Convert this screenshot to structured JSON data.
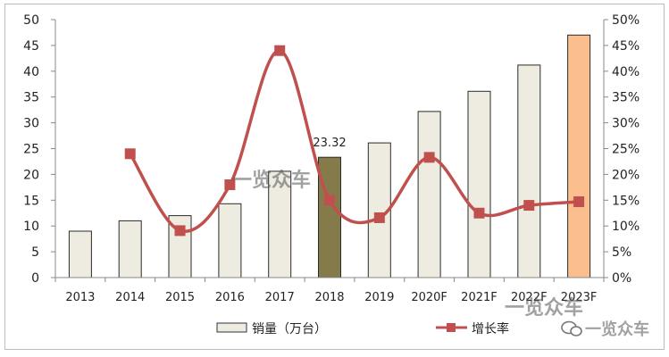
{
  "chart_data": {
    "type": "bar",
    "categories": [
      "2013",
      "2014",
      "2015",
      "2016",
      "2017",
      "2018",
      "2019",
      "2020F",
      "2021F",
      "2022F",
      "2023F"
    ],
    "series": [
      {
        "name": "销量（万台）",
        "type": "bar",
        "axis": "left",
        "values": [
          9,
          11,
          12,
          14.3,
          20.6,
          23.32,
          26.1,
          32.2,
          36.1,
          41.2,
          47
        ],
        "colors": [
          "#eeece1",
          "#eeece1",
          "#eeece1",
          "#eeece1",
          "#eeece1",
          "#857a4a",
          "#eeece1",
          "#eeece1",
          "#eeece1",
          "#eeece1",
          "#fbbf8f"
        ]
      },
      {
        "name": "增长率",
        "type": "line",
        "axis": "right",
        "values": [
          null,
          24,
          9.1,
          18,
          44,
          15,
          11.6,
          23.3,
          12.5,
          14,
          14.7
        ],
        "color": "#c0504d"
      }
    ],
    "ylim_left": [
      0,
      50
    ],
    "yticks_left": [
      "0",
      "5",
      "10",
      "15",
      "20",
      "25",
      "30",
      "35",
      "40",
      "45",
      "50"
    ],
    "ylim_right": [
      0,
      50
    ],
    "yticks_right": [
      "0%",
      "5%",
      "10%",
      "15%",
      "20%",
      "25%",
      "30%",
      "35%",
      "40%",
      "45%",
      "50%"
    ],
    "data_labels": [
      {
        "category": "2018",
        "text": "23.32"
      }
    ],
    "legend": {
      "position": "bottom"
    },
    "grid": false
  },
  "watermarks": [
    "一览众车",
    "一览众车",
    "一览众车"
  ]
}
